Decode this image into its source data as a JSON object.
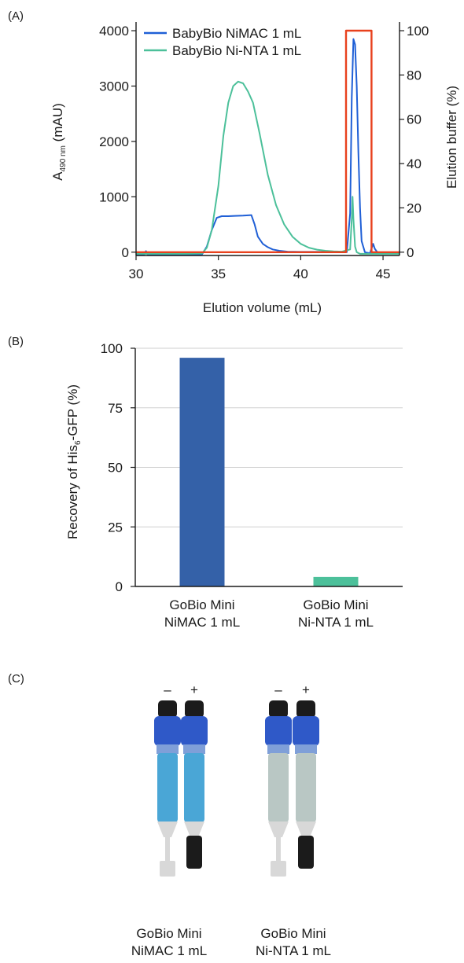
{
  "panels": {
    "a": "(A)",
    "b": "(B)",
    "c": "(C)"
  },
  "chart_data": [
    {
      "type": "line",
      "xlabel": "Elution volume (mL)",
      "ylabel": "A",
      "ylabel_sub": "490 nm",
      "ylabel_unit": " (mAU)",
      "y2label": "Elution buffer (%)",
      "xlim": [
        30,
        46
      ],
      "ylim": [
        -60,
        4100
      ],
      "y2lim": [
        -1.5,
        102.5
      ],
      "xticks": [
        30,
        35,
        40,
        45
      ],
      "yticks": [
        0,
        1000,
        2000,
        3000,
        4000
      ],
      "y2ticks": [
        0,
        20,
        40,
        60,
        80,
        100
      ],
      "legend_position": "top",
      "series": [
        {
          "name": "BabyBio NiMAC 1 mL",
          "color": "#1f5fd6",
          "axis": "left",
          "x": [
            30.0,
            30.5,
            30.6,
            30.7,
            31.0,
            33.0,
            34.0,
            34.3,
            34.6,
            34.9,
            35.2,
            35.6,
            36.0,
            36.5,
            37.0,
            37.2,
            37.4,
            37.7,
            38.0,
            38.3,
            38.7,
            39.2,
            40.0,
            41.0,
            42.0,
            42.8,
            43.0,
            43.1,
            43.2,
            43.3,
            43.4,
            43.5,
            43.6,
            43.7,
            43.9,
            44.2,
            44.4,
            44.5,
            44.7,
            45.0,
            45.5,
            46.0
          ],
          "y": [
            -50,
            -40,
            20,
            -40,
            -45,
            -45,
            -40,
            100,
            400,
            620,
            650,
            650,
            655,
            660,
            670,
            500,
            280,
            150,
            90,
            50,
            25,
            10,
            5,
            5,
            5,
            0,
            700,
            2800,
            3850,
            3750,
            3000,
            1800,
            800,
            200,
            0,
            -20,
            150,
            60,
            -20,
            -20,
            -20,
            -20
          ]
        },
        {
          "name": "BabyBio Ni-NTA 1 mL",
          "color": "#4cc09a",
          "axis": "left",
          "x": [
            30.0,
            31.0,
            33.0,
            34.0,
            34.3,
            34.6,
            35.0,
            35.3,
            35.6,
            35.9,
            36.2,
            36.5,
            36.8,
            37.1,
            37.5,
            38.0,
            38.5,
            39.0,
            39.5,
            40.0,
            40.5,
            41.0,
            41.5,
            42.0,
            42.5,
            43.0,
            43.1,
            43.15,
            43.2,
            43.3,
            43.4,
            43.6,
            44.0,
            45.0,
            46.0
          ],
          "y": [
            -30,
            -30,
            -30,
            -25,
            80,
            400,
            1200,
            2100,
            2700,
            3000,
            3080,
            3050,
            2900,
            2700,
            2150,
            1400,
            850,
            500,
            280,
            150,
            80,
            45,
            25,
            15,
            10,
            50,
            600,
            1000,
            600,
            100,
            0,
            -30,
            -30,
            -30,
            -30
          ]
        },
        {
          "name": "Elution buffer",
          "color": "#e8411d",
          "axis": "right",
          "x": [
            30.0,
            42.75,
            42.75,
            44.3,
            44.3,
            46.0
          ],
          "y": [
            0,
            0,
            100,
            100,
            0,
            0
          ]
        }
      ]
    },
    {
      "type": "bar",
      "ylabel": "Recovery of His",
      "ylabel_sub": "6",
      "ylabel_unit": "-GFP (%)",
      "ylim": [
        0,
        100
      ],
      "yticks": [
        0,
        25,
        50,
        75,
        100
      ],
      "grid": true,
      "categories": [
        [
          "GoBio Mini",
          "NiMAC 1 mL"
        ],
        [
          "GoBio Mini",
          "Ni-NTA 1 mL"
        ]
      ],
      "values": [
        96,
        4
      ],
      "colors": [
        "#3461a8",
        "#4cc09a"
      ]
    }
  ],
  "photo": {
    "marks": [
      "–",
      "+",
      "–",
      "+"
    ],
    "captions": [
      [
        "GoBio Mini",
        "NiMAC 1 mL"
      ],
      [
        "GoBio Mini",
        "Ni-NTA 1 mL"
      ]
    ],
    "colors": {
      "cap_blue": "#2f59c8",
      "knob": "#1b1b1b",
      "resin_blue": "#4aa6d6",
      "resin_grey": "#b9c7c4",
      "tip": "#d8d8d8"
    }
  }
}
